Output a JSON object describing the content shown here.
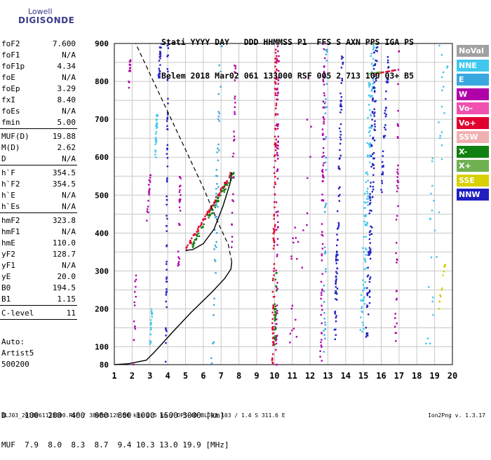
{
  "logo": {
    "top": "Lowell",
    "main": "DIGISONDE"
  },
  "header": {
    "line1": "Stati YYYY DAY   DDD HHMMSS P1  FFS S AXN PPS IGA PS",
    "line2": "Belem 2018 Mar02 061 133000 RSF 005 2 713 100 03+ B5"
  },
  "params": [
    {
      "name": "foF2",
      "value": "7.600"
    },
    {
      "name": "foF1",
      "value": "N/A"
    },
    {
      "name": "foF1p",
      "value": "4.34"
    },
    {
      "name": "foE",
      "value": "N/A"
    },
    {
      "name": "foEp",
      "value": "3.29"
    },
    {
      "name": "fxI",
      "value": "8.40"
    },
    {
      "name": "foEs",
      "value": "N/A"
    },
    {
      "name": "fmin",
      "value": "5.00"
    },
    {
      "name": "MUF(D)",
      "value": "19.88"
    },
    {
      "name": "M(D)",
      "value": "2.62"
    },
    {
      "name": "D",
      "value": "N/A"
    },
    {
      "name": "h`F",
      "value": "354.5"
    },
    {
      "name": "h`F2",
      "value": "354.5"
    },
    {
      "name": "h`E",
      "value": "N/A"
    },
    {
      "name": "h`Es",
      "value": "N/A"
    },
    {
      "name": "hmF2",
      "value": "323.8"
    },
    {
      "name": "hmF1",
      "value": "N/A"
    },
    {
      "name": "hmE",
      "value": "110.0"
    },
    {
      "name": "yF2",
      "value": "128.7"
    },
    {
      "name": "yF1",
      "value": "N/A"
    },
    {
      "name": "yE",
      "value": "20.0"
    },
    {
      "name": "B0",
      "value": "194.5"
    },
    {
      "name": "B1",
      "value": "1.15"
    },
    {
      "name": "C-level",
      "value": "11"
    }
  ],
  "auto": {
    "line1": "Auto:",
    "line2": "Artist5",
    "line3": "500200"
  },
  "legend": [
    {
      "label": "NoVal",
      "color": "#a0a0a0"
    },
    {
      "label": "NNE",
      "color": "#3fc8ec"
    },
    {
      "label": "E",
      "color": "#3aa8e0"
    },
    {
      "label": "W",
      "color": "#b000a8"
    },
    {
      "label": "Vo-",
      "color": "#f050b0"
    },
    {
      "label": "Vo+",
      "color": "#e00030"
    },
    {
      "label": "SSW",
      "color": "#f0b0b0"
    },
    {
      "label": "X-",
      "color": "#108010"
    },
    {
      "label": "X+",
      "color": "#70b050"
    },
    {
      "label": "SSE",
      "color": "#d8d000"
    },
    {
      "label": "NNW",
      "color": "#2020c0"
    }
  ],
  "bottom_table": {
    "row1": "D    100  200  400  600  800 1000 1500 3000 [km]",
    "row2": "MUF  7.9  8.0  8.3  8.7  9.4 10.3 13.0 19.9 [MHz]"
  },
  "footer": {
    "left": "BLJ03_2018061133000.RSF / 380fx512h 50 kHs 2.5 km / DPS-4D BLJ03 103 / 1.4 S 311.6 E",
    "right": "Ion2Png v. 1.3.17"
  },
  "chart_data": {
    "type": "scatter",
    "x_ticks": [
      "1",
      "2",
      "3",
      "4",
      "5",
      "6",
      "7",
      "8",
      "9",
      "10",
      "11",
      "12",
      "13",
      "14",
      "15",
      "16",
      "17",
      "18",
      "19",
      "20"
    ],
    "y_ticks": [
      "80",
      "100",
      "200",
      "300",
      "400",
      "500",
      "600",
      "700",
      "800",
      "900"
    ],
    "xlim": [
      1,
      20
    ],
    "ylim": [
      80,
      900
    ],
    "grid": true,
    "y_scale": "piecewise",
    "y_axis_mapping": [
      [
        80,
        0
      ],
      [
        100,
        0.5
      ],
      [
        900,
        9
      ]
    ],
    "profile_solid": [
      [
        1.0,
        80
      ],
      [
        1.8,
        81
      ],
      [
        2.8,
        85
      ],
      [
        3.3,
        95
      ],
      [
        4.3,
        140
      ],
      [
        5.3,
        190
      ],
      [
        6.5,
        245
      ],
      [
        7.2,
        280
      ],
      [
        7.55,
        305
      ],
      [
        7.6,
        323.8
      ]
    ],
    "profile_dashed": [
      [
        7.6,
        323.8
      ],
      [
        7.4,
        370
      ],
      [
        6.9,
        420
      ],
      [
        6.0,
        520
      ],
      [
        5.0,
        620
      ],
      [
        4.0,
        720
      ],
      [
        3.0,
        820
      ],
      [
        2.2,
        900
      ]
    ],
    "trace_fit": [
      [
        5.0,
        354.5
      ],
      [
        5.4,
        356
      ],
      [
        6.0,
        372
      ],
      [
        6.6,
        410
      ],
      [
        7.1,
        470
      ],
      [
        7.5,
        530
      ],
      [
        7.6,
        560
      ]
    ]
  }
}
